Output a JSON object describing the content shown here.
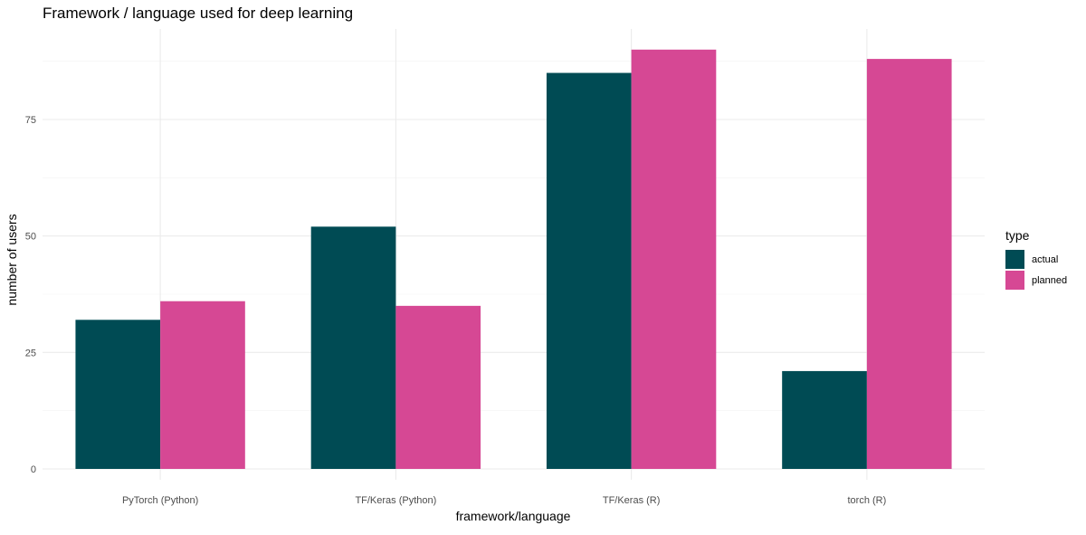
{
  "chart_data": {
    "type": "bar",
    "title": "Framework / language used for deep learning",
    "xlabel": "framework/language",
    "ylabel": "number of users",
    "categories": [
      "PyTorch (Python)",
      "TF/Keras (Python)",
      "TF/Keras (R)",
      "torch (R)"
    ],
    "series": [
      {
        "name": "actual",
        "color": "#004b54",
        "values": [
          32,
          52,
          85,
          21
        ]
      },
      {
        "name": "planned",
        "color": "#d64894",
        "values": [
          36,
          35,
          90,
          88
        ]
      }
    ],
    "ylim": [
      0,
      94
    ],
    "yticks": [
      0,
      25,
      50,
      75
    ],
    "grid": true,
    "legend": {
      "title": "type",
      "position": "right"
    }
  }
}
